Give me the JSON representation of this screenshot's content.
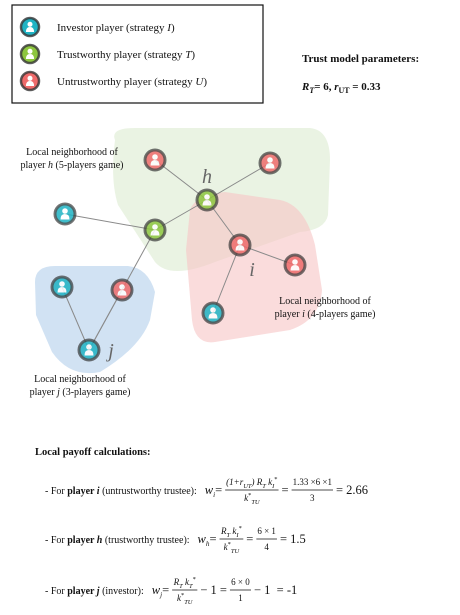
{
  "legend": [
    {
      "color": "#1fb3c4",
      "text": [
        {
          "t": "Investor player (strategy "
        },
        {
          "t": "I",
          "style": [
            "i"
          ]
        },
        {
          "t": ")"
        }
      ]
    },
    {
      "color": "#8dc63f",
      "text": [
        {
          "t": "Trustworthy player (strategy "
        },
        {
          "t": "T",
          "style": [
            "i"
          ]
        },
        {
          "t": ")"
        }
      ]
    },
    {
      "color": "#ef6b6b",
      "text": [
        {
          "t": "Untrustworthy player (strategy "
        },
        {
          "t": "U",
          "style": [
            "i"
          ]
        },
        {
          "t": ")"
        }
      ]
    }
  ],
  "parameters": {
    "title": "Trust model parameters:",
    "text": [
      {
        "t": "R",
        "style": [
          "b",
          "i"
        ]
      },
      {
        "t": "T",
        "style": [
          "b",
          "i",
          "sub"
        ]
      },
      {
        "t": "= 6, ",
        "style": [
          "b"
        ]
      },
      {
        "t": "r",
        "style": [
          "b",
          "i"
        ]
      },
      {
        "t": "UT",
        "style": [
          "b",
          "sub"
        ]
      },
      {
        "t": " = 0.33",
        "style": [
          "b"
        ]
      }
    ]
  },
  "node_labels": [
    "h",
    "i",
    "j"
  ],
  "neighborhoods": [
    {
      "lines": [
        [
          {
            "t": "Local neighborhood of"
          }
        ],
        [
          {
            "t": "player "
          },
          {
            "t": "h",
            "style": [
              "i"
            ]
          },
          {
            "t": " (5-players game)"
          }
        ]
      ]
    },
    {
      "lines": [
        [
          {
            "t": "Local neighborhood of"
          }
        ],
        [
          {
            "t": "player "
          },
          {
            "t": "i",
            "style": [
              "i"
            ]
          },
          {
            "t": " (4-players game)"
          }
        ]
      ]
    },
    {
      "lines": [
        [
          {
            "t": "Local neighborhood of"
          }
        ],
        [
          {
            "t": "player "
          },
          {
            "t": "j",
            "style": [
              "i"
            ]
          },
          {
            "t": " (3-players game)"
          }
        ]
      ]
    }
  ],
  "payoff": {
    "title": "Local payoff calculations:",
    "rows": [
      [
        {
          "text": [
            {
              "t": "- For "
            },
            {
              "t": "player ",
              "style": [
                "b"
              ]
            },
            {
              "t": "i",
              "style": [
                "b",
                "i"
              ]
            },
            {
              "t": " (untrustworthy trustee):  "
            }
          ]
        },
        {
          "text": [
            {
              "t": "w",
              "style": [
                "i",
                "big"
              ]
            },
            {
              "t": "i",
              "style": [
                "i",
                "sub"
              ]
            },
            {
              "t": "=",
              "style": [
                "big"
              ]
            }
          ]
        },
        {
          "num": [
            {
              "t": "(1+r",
              "style": [
                "i"
              ]
            },
            {
              "t": "UT",
              "style": [
                "i",
                "sub"
              ]
            },
            {
              "t": ") R",
              "style": [
                "i"
              ]
            },
            {
              "t": "T",
              "style": [
                "i",
                "sub"
              ]
            },
            {
              "t": " k",
              "style": [
                "i"
              ]
            },
            {
              "t": "I",
              "style": [
                "i",
                "sub"
              ]
            },
            {
              "t": "*",
              "style": [
                "sup"
              ]
            }
          ],
          "den": [
            {
              "t": "k",
              "style": [
                "i"
              ]
            },
            {
              "t": "*",
              "style": [
                "sup"
              ]
            },
            {
              "t": "TU",
              "style": [
                "i",
                "sub"
              ]
            }
          ]
        },
        {
          "text": [
            {
              "t": "=",
              "style": [
                "big"
              ]
            }
          ]
        },
        {
          "num": [
            {
              "t": "1.33 ×6 ×1"
            }
          ],
          "den": [
            {
              "t": "3"
            }
          ]
        },
        {
          "text": [
            {
              "t": "= 2.66",
              "style": [
                "big"
              ]
            }
          ]
        }
      ],
      [
        {
          "text": [
            {
              "t": "- For "
            },
            {
              "t": "player ",
              "style": [
                "b"
              ]
            },
            {
              "t": "h",
              "style": [
                "b",
                "i"
              ]
            },
            {
              "t": " (trustworthy trustee):  "
            }
          ]
        },
        {
          "text": [
            {
              "t": "w",
              "style": [
                "i",
                "big"
              ]
            },
            {
              "t": "h",
              "style": [
                "i",
                "sub"
              ]
            },
            {
              "t": "=",
              "style": [
                "big"
              ]
            }
          ]
        },
        {
          "num": [
            {
              "t": "R",
              "style": [
                "i"
              ]
            },
            {
              "t": "T",
              "style": [
                "i",
                "sub"
              ]
            },
            {
              "t": " k",
              "style": [
                "i"
              ]
            },
            {
              "t": "I",
              "style": [
                "i",
                "sub"
              ]
            },
            {
              "t": "*",
              "style": [
                "sup"
              ]
            }
          ],
          "den": [
            {
              "t": "k",
              "style": [
                "i"
              ]
            },
            {
              "t": "*",
              "style": [
                "sup"
              ]
            },
            {
              "t": "TU",
              "style": [
                "i",
                "sub"
              ]
            }
          ]
        },
        {
          "text": [
            {
              "t": "=",
              "style": [
                "big"
              ]
            }
          ]
        },
        {
          "num": [
            {
              "t": "6 × 1"
            }
          ],
          "den": [
            {
              "t": "4"
            }
          ]
        },
        {
          "text": [
            {
              "t": "= 1.5",
              "style": [
                "big"
              ]
            }
          ]
        }
      ],
      [
        {
          "text": [
            {
              "t": "- For "
            },
            {
              "t": "player ",
              "style": [
                "b"
              ]
            },
            {
              "t": "j",
              "style": [
                "b",
                "i"
              ]
            },
            {
              "t": " (investor):  "
            }
          ]
        },
        {
          "text": [
            {
              "t": "w",
              "style": [
                "i",
                "big"
              ]
            },
            {
              "t": "j",
              "style": [
                "i",
                "sub"
              ]
            },
            {
              "t": "=",
              "style": [
                "big"
              ]
            }
          ]
        },
        {
          "num": [
            {
              "t": "R",
              "style": [
                "i"
              ]
            },
            {
              "t": "T",
              "style": [
                "i",
                "sub"
              ]
            },
            {
              "t": " k",
              "style": [
                "i"
              ]
            },
            {
              "t": "T",
              "style": [
                "i",
                "sub"
              ]
            },
            {
              "t": "*",
              "style": [
                "sup"
              ]
            }
          ],
          "den": [
            {
              "t": "k",
              "style": [
                "i"
              ]
            },
            {
              "t": "*",
              "style": [
                "sup"
              ]
            },
            {
              "t": "TU",
              "style": [
                "i",
                "sub"
              ]
            }
          ]
        },
        {
          "text": [
            {
              "t": "− 1 =",
              "style": [
                "big"
              ]
            }
          ]
        },
        {
          "num": [
            {
              "t": "6 × 0"
            }
          ],
          "den": [
            {
              "t": "1"
            }
          ]
        },
        {
          "text": [
            {
              "t": "− 1  = -1",
              "style": [
                "big"
              ]
            }
          ]
        }
      ]
    ]
  }
}
